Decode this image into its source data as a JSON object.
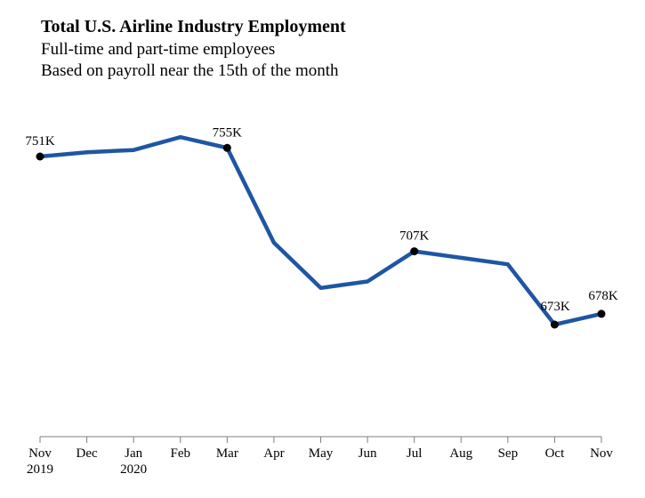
{
  "header": {
    "title": "Total U.S. Airline Industry Employment",
    "subtitle_line1": "Full-time and part-time employees",
    "subtitle_line2": "Based on payroll near the 15th of the month"
  },
  "chart_data": {
    "type": "line",
    "title": "Total U.S. Airline Industry Employment",
    "subtitle": [
      "Full-time and part-time employees",
      "Based on payroll near the 15th of the month"
    ],
    "categories": [
      "Nov",
      "Dec",
      "Jan",
      "Feb",
      "Mar",
      "Apr",
      "May",
      "Jun",
      "Jul",
      "Aug",
      "Sep",
      "Oct",
      "Nov"
    ],
    "year_labels": [
      "2019",
      "",
      "2020",
      "",
      "",
      "",
      "",
      "",
      "",
      "",
      "",
      "",
      ""
    ],
    "series": [
      {
        "values": [
          751,
          753,
          754,
          760,
          755,
          711,
          690,
          693,
          707,
          704,
          701,
          673,
          678
        ],
        "color": "#1f56a3"
      }
    ],
    "marker_indices": [
      0,
      4,
      8,
      11,
      12
    ],
    "data_labels": [
      "751K",
      "755K",
      "707K",
      "673K",
      "678K"
    ],
    "ylim": [
      600,
      800
    ],
    "grid": false,
    "legend": "none",
    "axis_color": "#7f7f7f",
    "marker_color": "#000000"
  }
}
